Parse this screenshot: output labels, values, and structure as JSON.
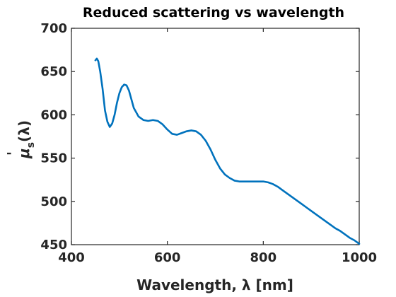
{
  "chart_data": {
    "type": "line",
    "title": "Reduced scattering vs wavelength",
    "xlabel": "Wavelength, λ [nm]",
    "ylabel": {
      "symbol": "μ",
      "prime": "'",
      "subscript": "s",
      "argument": "(λ)"
    },
    "xlim": [
      400,
      1000
    ],
    "ylim": [
      450,
      700
    ],
    "xticks": [
      400,
      600,
      800,
      1000
    ],
    "yticks": [
      450,
      500,
      550,
      600,
      650,
      700
    ],
    "grid": false,
    "box": true,
    "series": [
      {
        "color": "#0072BD",
        "x": [
          450,
          453,
          456,
          460,
          465,
          470,
          475,
          480,
          485,
          490,
          495,
          500,
          505,
          510,
          515,
          520,
          525,
          530,
          540,
          550,
          560,
          570,
          580,
          590,
          600,
          610,
          620,
          630,
          640,
          650,
          660,
          670,
          680,
          690,
          700,
          710,
          720,
          730,
          740,
          750,
          760,
          770,
          780,
          790,
          800,
          810,
          820,
          830,
          840,
          850,
          860,
          870,
          880,
          890,
          900,
          910,
          920,
          930,
          940,
          950,
          960,
          970,
          980,
          990,
          1000
        ],
        "values": [
          663,
          665,
          662,
          650,
          630,
          605,
          592,
          586,
          590,
          600,
          614,
          625,
          632,
          635,
          634,
          628,
          618,
          608,
          598,
          594,
          593,
          594,
          593,
          589,
          583,
          578,
          577,
          579,
          581,
          582,
          581,
          577,
          570,
          560,
          548,
          538,
          531,
          527,
          524,
          523,
          523,
          523,
          523,
          523,
          523,
          522,
          520,
          517,
          513,
          509,
          505,
          501,
          497,
          493,
          489,
          485,
          481,
          477,
          473,
          469,
          466,
          462,
          458,
          455,
          451
        ]
      }
    ]
  }
}
